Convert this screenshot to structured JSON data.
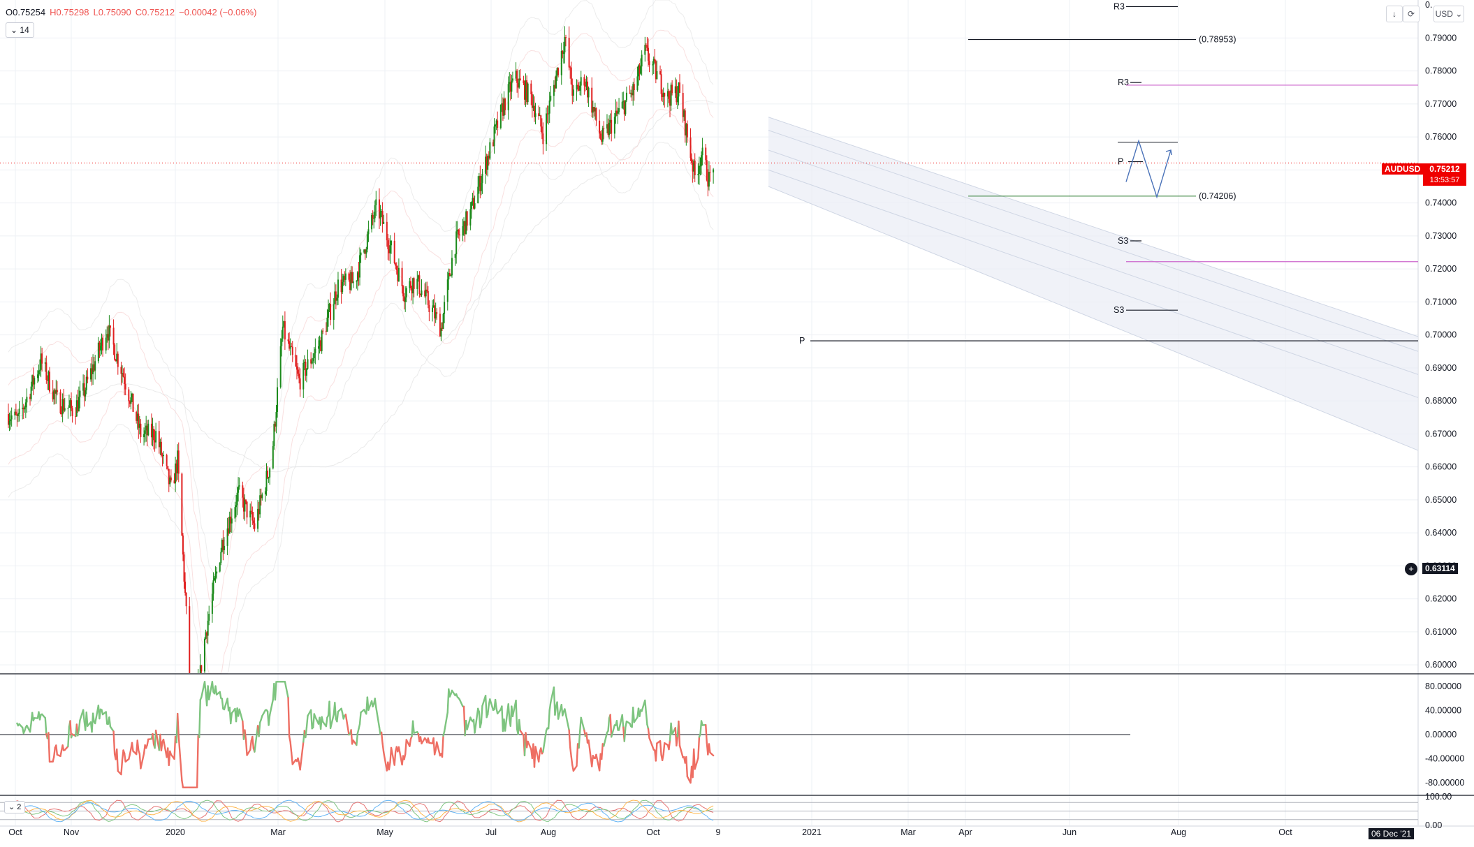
{
  "header": {
    "open": "O0.75254",
    "high": "H0.75298",
    "low": "L0.75090",
    "close": "C0.75212",
    "change": "−0.00042 (−0.06%)",
    "indicator_button": "14",
    "indicator_button_2": "2"
  },
  "toolbar": {
    "currency": "USD"
  },
  "symbol_tag": {
    "symbol": "AUDUSD",
    "price": "0.75212",
    "countdown": "13:53:57",
    "color": "#ef0000"
  },
  "crosshair_tag": {
    "price": "0.63114"
  },
  "date_tag": {
    "label": "06 Dec '21"
  },
  "colors": {
    "up": "#1b8a1b",
    "down": "#e01f1f",
    "rsi_up": "#7dc47f",
    "rsi_down": "#ee6e63",
    "pivot_magenta": "#cc66cc"
  },
  "levels": {
    "fib_high_label": "(0.78953)",
    "fib_low_label": "(0.74206)",
    "r3_top": "R3",
    "r3_mid": "R3",
    "p_mid": "P",
    "s3_mid": "S3",
    "s3_low": "S3",
    "p_main": "P"
  },
  "chart_data": {
    "type": "candlestick",
    "price_axis": {
      "ylim": [
        0.5975,
        0.8015
      ],
      "ticks": [
        "0.79000",
        "0.78000",
        "0.77000",
        "0.76000",
        "0.75000",
        "0.74000",
        "0.73000",
        "0.72000",
        "0.71000",
        "0.70000",
        "0.69000",
        "0.68000",
        "0.67000",
        "0.66000",
        "0.65000",
        "0.64000",
        "0.63000",
        "0.62000",
        "0.61000",
        "0.60000"
      ],
      "top_tick_partial": "0."
    },
    "time_axis": {
      "labels": [
        "Oct",
        "Nov",
        "2020",
        "Mar",
        "May",
        "Jul",
        "Aug",
        "Oct",
        "9",
        "2021",
        "Mar",
        "Apr",
        "Jun",
        "Aug",
        "Oct"
      ]
    },
    "price_path": [
      [
        "2019-10-01",
        0.676
      ],
      [
        "2019-10-10",
        0.674
      ],
      [
        "2019-10-31",
        0.692
      ],
      [
        "2019-11-15",
        0.68
      ],
      [
        "2019-11-30",
        0.677
      ],
      [
        "2019-12-10",
        0.683
      ],
      [
        "2019-12-31",
        0.702
      ],
      [
        "2020-01-15",
        0.688
      ],
      [
        "2020-01-31",
        0.67
      ],
      [
        "2020-02-14",
        0.67
      ],
      [
        "2020-02-28",
        0.653
      ],
      [
        "2020-03-05",
        0.662
      ],
      [
        "2020-03-19",
        0.58
      ],
      [
        "2020-03-31",
        0.61
      ],
      [
        "2020-04-15",
        0.637
      ],
      [
        "2020-04-30",
        0.652
      ],
      [
        "2020-05-15",
        0.642
      ],
      [
        "2020-05-31",
        0.663
      ],
      [
        "2020-06-10",
        0.702
      ],
      [
        "2020-06-25",
        0.686
      ],
      [
        "2020-07-15",
        0.698
      ],
      [
        "2020-07-31",
        0.715
      ],
      [
        "2020-08-15",
        0.716
      ],
      [
        "2020-08-31",
        0.734
      ],
      [
        "2020-09-05",
        0.739
      ],
      [
        "2020-09-15",
        0.729
      ],
      [
        "2020-09-30",
        0.713
      ],
      [
        "2020-10-10",
        0.717
      ],
      [
        "2020-10-25",
        0.708
      ],
      [
        "2020-11-03",
        0.702
      ],
      [
        "2020-11-15",
        0.727
      ],
      [
        "2020-11-30",
        0.737
      ],
      [
        "2020-12-15",
        0.753
      ],
      [
        "2020-12-31",
        0.77
      ],
      [
        "2021-01-10",
        0.778
      ],
      [
        "2021-01-25",
        0.772
      ],
      [
        "2021-02-05",
        0.761
      ],
      [
        "2021-02-25",
        0.79
      ],
      [
        "2021-03-05",
        0.772
      ],
      [
        "2021-03-15",
        0.778
      ],
      [
        "2021-03-31",
        0.759
      ],
      [
        "2021-04-15",
        0.767
      ],
      [
        "2021-05-01",
        0.775
      ],
      [
        "2021-05-10",
        0.786
      ],
      [
        "2021-05-31",
        0.772
      ],
      [
        "2021-06-10",
        0.774
      ],
      [
        "2021-06-25",
        0.748
      ],
      [
        "2021-07-01",
        0.755
      ],
      [
        "2021-07-08",
        0.747
      ],
      [
        "2021-07-12",
        0.7521
      ]
    ],
    "oscillator_1": {
      "levels": [
        "80.00000",
        "40.00000",
        "0.00000",
        "-40.00000",
        "-80.00000"
      ],
      "ylim": [
        -100,
        100
      ]
    },
    "oscillator_2": {
      "levels": [
        "100.00",
        "0.00"
      ],
      "ylim": [
        0,
        100
      ]
    }
  }
}
